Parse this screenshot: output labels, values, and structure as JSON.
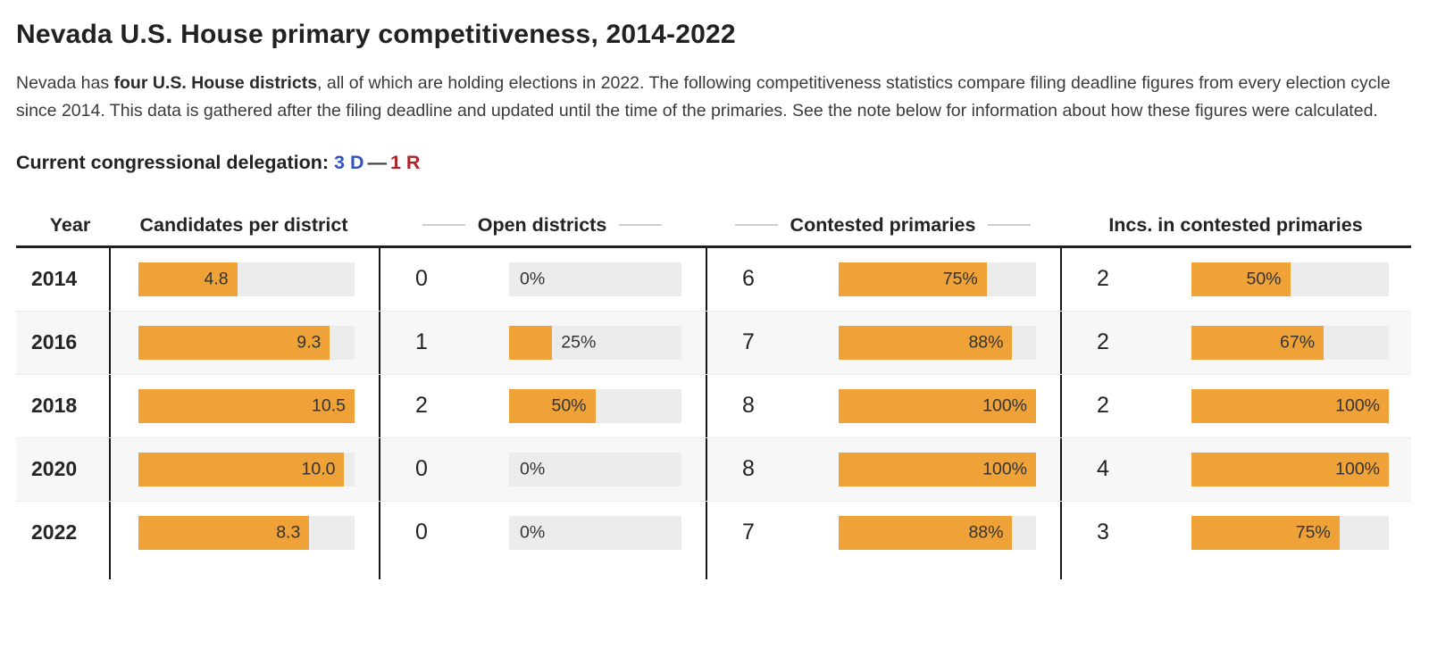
{
  "page": {
    "title": "Nevada U.S. House primary competitiveness, 2014-2022",
    "intro": {
      "pre": "Nevada has ",
      "bold": "four U.S. House districts",
      "post": ", all of which are holding elections in 2022. The following competitiveness statistics compare filing deadline figures from every election cycle since 2014. This data is gathered after the filing deadline and updated until the time of the primaries. See the note below for information about how these figures were calculated."
    },
    "delegation": {
      "label": "Current congressional delegation:",
      "dem": "3 D",
      "separator": "—",
      "rep": "1 R"
    }
  },
  "colors": {
    "bar_fill": "#efa238",
    "bar_track": "#ececec",
    "dem_blue": "#3353c4",
    "rep_red": "#b0232a",
    "row_alt": "#f7f7f7"
  },
  "table": {
    "headers": {
      "year": "Year",
      "candidates": "Candidates per district",
      "open": "Open districts",
      "contested": "Contested primaries",
      "incs": "Incs. in contested primaries"
    },
    "rows": [
      {
        "year": "2014",
        "candidates": {
          "label": "4.8",
          "value": 4.8
        },
        "open": {
          "count": "0",
          "label": "0%",
          "pct": 0
        },
        "contested": {
          "count": "6",
          "label": "75%",
          "pct": 75
        },
        "incs": {
          "count": "2",
          "label": "50%",
          "pct": 50
        }
      },
      {
        "year": "2016",
        "candidates": {
          "label": "9.3",
          "value": 9.3
        },
        "open": {
          "count": "1",
          "label": "25%",
          "pct": 25
        },
        "contested": {
          "count": "7",
          "label": "88%",
          "pct": 88
        },
        "incs": {
          "count": "2",
          "label": "67%",
          "pct": 67
        }
      },
      {
        "year": "2018",
        "candidates": {
          "label": "10.5",
          "value": 10.5
        },
        "open": {
          "count": "2",
          "label": "50%",
          "pct": 50
        },
        "contested": {
          "count": "8",
          "label": "100%",
          "pct": 100
        },
        "incs": {
          "count": "2",
          "label": "100%",
          "pct": 100
        }
      },
      {
        "year": "2020",
        "candidates": {
          "label": "10.0",
          "value": 10.0
        },
        "open": {
          "count": "0",
          "label": "0%",
          "pct": 0
        },
        "contested": {
          "count": "8",
          "label": "100%",
          "pct": 100
        },
        "incs": {
          "count": "4",
          "label": "100%",
          "pct": 100
        }
      },
      {
        "year": "2022",
        "candidates": {
          "label": "8.3",
          "value": 8.3
        },
        "open": {
          "count": "0",
          "label": "0%",
          "pct": 0
        },
        "contested": {
          "count": "7",
          "label": "88%",
          "pct": 88
        },
        "incs": {
          "count": "3",
          "label": "75%",
          "pct": 75
        }
      }
    ]
  },
  "chart_data": {
    "type": "table",
    "title": "Nevada U.S. House primary competitiveness, 2014-2022",
    "categories": [
      "2014",
      "2016",
      "2018",
      "2020",
      "2022"
    ],
    "series": [
      {
        "name": "Candidates per district",
        "values": [
          4.8,
          9.3,
          10.5,
          10.0,
          8.3
        ]
      },
      {
        "name": "Open districts (count)",
        "values": [
          0,
          1,
          2,
          0,
          0
        ]
      },
      {
        "name": "Open districts (%)",
        "values": [
          0,
          25,
          50,
          0,
          0
        ]
      },
      {
        "name": "Contested primaries (count)",
        "values": [
          6,
          7,
          8,
          8,
          7
        ]
      },
      {
        "name": "Contested primaries (%)",
        "values": [
          75,
          88,
          100,
          100,
          88
        ]
      },
      {
        "name": "Incumbents in contested primaries (count)",
        "values": [
          2,
          2,
          2,
          4,
          3
        ]
      },
      {
        "name": "Incumbents in contested primaries (%)",
        "values": [
          50,
          67,
          100,
          100,
          75
        ]
      }
    ],
    "candidates_axis_max": 10.5,
    "bar_color": "#efa238",
    "track_color": "#ececec",
    "legend_position": "none",
    "grid": false
  }
}
